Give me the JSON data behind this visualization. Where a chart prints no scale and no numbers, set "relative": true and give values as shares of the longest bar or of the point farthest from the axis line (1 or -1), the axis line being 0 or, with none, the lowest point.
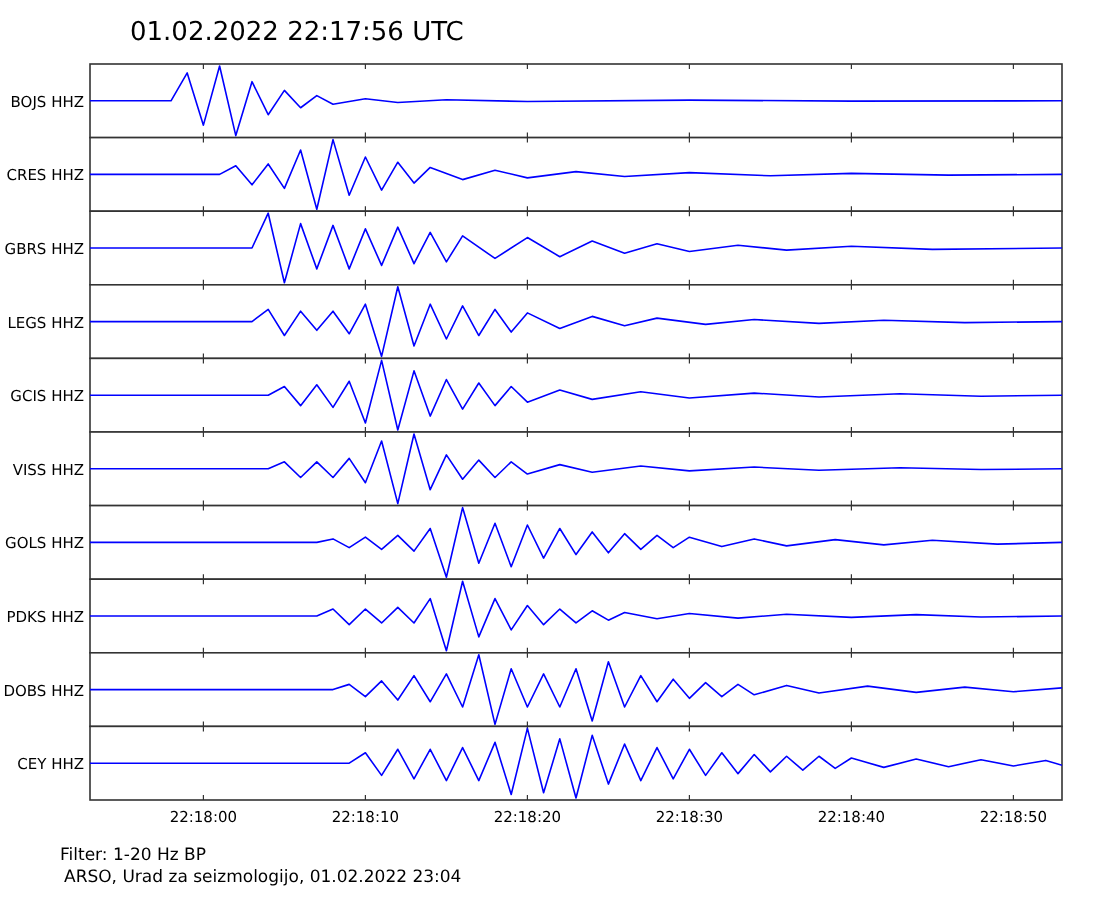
{
  "chart_data": [
    {
      "type": "line",
      "title": "01.02.2022  22:17:56 UTC",
      "ylabel": "BOJS HHZ",
      "relative": true,
      "tick_labels": false,
      "xlim": [
        "2022-02-01T22:17:53",
        "2022-02-01T22:18:53"
      ],
      "xticks": [
        {
          "value": "2022-02-01T22:18:00",
          "label": null
        },
        {
          "value": "2022-02-01T22:18:10",
          "label": null
        },
        {
          "value": "2022-02-01T22:18:20",
          "label": null
        },
        {
          "value": "2022-02-01T22:18:30",
          "label": null
        },
        {
          "value": "2022-02-01T22:18:40",
          "label": null
        },
        {
          "value": "2022-02-01T22:18:50",
          "label": null
        }
      ],
      "series": [
        {
          "color": "#0000ff",
          "x": [
            "2022-02-01T22:17:53",
            "2022-02-01T22:17:58",
            "2022-02-01T22:17:59",
            "2022-02-01T22:18:00",
            "2022-02-01T22:18:01",
            "2022-02-01T22:18:02",
            "2022-02-01T22:18:03",
            "2022-02-01T22:18:04",
            "2022-02-01T22:18:05",
            "2022-02-01T22:18:06",
            "2022-02-01T22:18:07",
            "2022-02-01T22:18:08",
            "2022-02-01T22:18:10",
            "2022-02-01T22:18:12",
            "2022-02-01T22:18:15",
            "2022-02-01T22:18:20",
            "2022-02-01T22:18:30",
            "2022-02-01T22:18:40",
            "2022-02-01T22:18:53"
          ],
          "values": [
            0.5,
            0.5,
            0.9,
            0.15,
            1,
            0,
            0.775,
            0.3,
            0.65,
            0.4,
            0.575,
            0.45,
            0.53,
            0.475,
            0.515,
            0.49,
            0.51,
            0.495,
            0.5
          ]
        }
      ]
    },
    {
      "type": "line",
      "ylabel": "CRES HHZ",
      "relative": true,
      "tick_labels": false,
      "xlim": [
        "2022-02-01T22:17:53",
        "2022-02-01T22:18:53"
      ],
      "xticks": [
        {
          "value": "2022-02-01T22:18:00",
          "label": null
        },
        {
          "value": "2022-02-01T22:18:10",
          "label": null
        },
        {
          "value": "2022-02-01T22:18:20",
          "label": null
        },
        {
          "value": "2022-02-01T22:18:30",
          "label": null
        },
        {
          "value": "2022-02-01T22:18:40",
          "label": null
        },
        {
          "value": "2022-02-01T22:18:50",
          "label": null
        }
      ],
      "series": [
        {
          "color": "#0000ff",
          "x": [
            "2022-02-01T22:17:53",
            "2022-02-01T22:18:01",
            "2022-02-01T22:18:02",
            "2022-02-01T22:18:03",
            "2022-02-01T22:18:04",
            "2022-02-01T22:18:05",
            "2022-02-01T22:18:06",
            "2022-02-01T22:18:07",
            "2022-02-01T22:18:08",
            "2022-02-01T22:18:09",
            "2022-02-01T22:18:10",
            "2022-02-01T22:18:11",
            "2022-02-01T22:18:12",
            "2022-02-01T22:18:13",
            "2022-02-01T22:18:14",
            "2022-02-01T22:18:16",
            "2022-02-01T22:18:18",
            "2022-02-01T22:18:20",
            "2022-02-01T22:18:23",
            "2022-02-01T22:18:26",
            "2022-02-01T22:18:30",
            "2022-02-01T22:18:35",
            "2022-02-01T22:18:40",
            "2022-02-01T22:18:46",
            "2022-02-01T22:18:53"
          ],
          "values": [
            0.5,
            0.5,
            0.625,
            0.35,
            0.65,
            0.3,
            0.85,
            0,
            1,
            0.2,
            0.75,
            0.275,
            0.675,
            0.375,
            0.6,
            0.425,
            0.56,
            0.45,
            0.54,
            0.47,
            0.525,
            0.48,
            0.515,
            0.49,
            0.5
          ]
        }
      ]
    },
    {
      "type": "line",
      "ylabel": "GBRS HHZ",
      "relative": true,
      "tick_labels": false,
      "xlim": [
        "2022-02-01T22:17:53",
        "2022-02-01T22:18:53"
      ],
      "xticks": [
        {
          "value": "2022-02-01T22:18:00",
          "label": null
        },
        {
          "value": "2022-02-01T22:18:10",
          "label": null
        },
        {
          "value": "2022-02-01T22:18:20",
          "label": null
        },
        {
          "value": "2022-02-01T22:18:30",
          "label": null
        },
        {
          "value": "2022-02-01T22:18:40",
          "label": null
        },
        {
          "value": "2022-02-01T22:18:50",
          "label": null
        }
      ],
      "series": [
        {
          "color": "#0000ff",
          "x": [
            "2022-02-01T22:17:53",
            "2022-02-01T22:18:03",
            "2022-02-01T22:18:04",
            "2022-02-01T22:18:05",
            "2022-02-01T22:18:06",
            "2022-02-01T22:18:07",
            "2022-02-01T22:18:08",
            "2022-02-01T22:18:09",
            "2022-02-01T22:18:10",
            "2022-02-01T22:18:11",
            "2022-02-01T22:18:12",
            "2022-02-01T22:18:13",
            "2022-02-01T22:18:14",
            "2022-02-01T22:18:15",
            "2022-02-01T22:18:16",
            "2022-02-01T22:18:18",
            "2022-02-01T22:18:20",
            "2022-02-01T22:18:22",
            "2022-02-01T22:18:24",
            "2022-02-01T22:18:26",
            "2022-02-01T22:18:28",
            "2022-02-01T22:18:30",
            "2022-02-01T22:18:33",
            "2022-02-01T22:18:36",
            "2022-02-01T22:18:40",
            "2022-02-01T22:18:45",
            "2022-02-01T22:18:53"
          ],
          "values": [
            0.5,
            0.5,
            1,
            0,
            0.85,
            0.2,
            0.825,
            0.2,
            0.775,
            0.25,
            0.8,
            0.275,
            0.725,
            0.3,
            0.675,
            0.35,
            0.65,
            0.375,
            0.6,
            0.425,
            0.56,
            0.45,
            0.54,
            0.47,
            0.525,
            0.48,
            0.5
          ]
        }
      ]
    },
    {
      "type": "line",
      "ylabel": "LEGS HHZ",
      "relative": true,
      "tick_labels": false,
      "xlim": [
        "2022-02-01T22:17:53",
        "2022-02-01T22:18:53"
      ],
      "xticks": [
        {
          "value": "2022-02-01T22:18:00",
          "label": null
        },
        {
          "value": "2022-02-01T22:18:10",
          "label": null
        },
        {
          "value": "2022-02-01T22:18:20",
          "label": null
        },
        {
          "value": "2022-02-01T22:18:30",
          "label": null
        },
        {
          "value": "2022-02-01T22:18:40",
          "label": null
        },
        {
          "value": "2022-02-01T22:18:50",
          "label": null
        }
      ],
      "series": [
        {
          "color": "#0000ff",
          "x": [
            "2022-02-01T22:17:53",
            "2022-02-01T22:18:03",
            "2022-02-01T22:18:04",
            "2022-02-01T22:18:05",
            "2022-02-01T22:18:06",
            "2022-02-01T22:18:07",
            "2022-02-01T22:18:08",
            "2022-02-01T22:18:09",
            "2022-02-01T22:18:10",
            "2022-02-01T22:18:11",
            "2022-02-01T22:18:12",
            "2022-02-01T22:18:13",
            "2022-02-01T22:18:14",
            "2022-02-01T22:18:15",
            "2022-02-01T22:18:16",
            "2022-02-01T22:18:17",
            "2022-02-01T22:18:18",
            "2022-02-01T22:18:19",
            "2022-02-01T22:18:20",
            "2022-02-01T22:18:22",
            "2022-02-01T22:18:24",
            "2022-02-01T22:18:26",
            "2022-02-01T22:18:28",
            "2022-02-01T22:18:31",
            "2022-02-01T22:18:34",
            "2022-02-01T22:18:38",
            "2022-02-01T22:18:42",
            "2022-02-01T22:18:47",
            "2022-02-01T22:18:53"
          ],
          "values": [
            0.5,
            0.5,
            0.675,
            0.3,
            0.65,
            0.375,
            0.65,
            0.325,
            0.75,
            0,
            1,
            0.15,
            0.75,
            0.25,
            0.725,
            0.3,
            0.675,
            0.35,
            0.625,
            0.4,
            0.575,
            0.44,
            0.55,
            0.46,
            0.53,
            0.475,
            0.52,
            0.485,
            0.5
          ]
        }
      ]
    },
    {
      "type": "line",
      "ylabel": "GCIS HHZ",
      "relative": true,
      "tick_labels": false,
      "xlim": [
        "2022-02-01T22:17:53",
        "2022-02-01T22:18:53"
      ],
      "xticks": [
        {
          "value": "2022-02-01T22:18:00",
          "label": null
        },
        {
          "value": "2022-02-01T22:18:10",
          "label": null
        },
        {
          "value": "2022-02-01T22:18:20",
          "label": null
        },
        {
          "value": "2022-02-01T22:18:30",
          "label": null
        },
        {
          "value": "2022-02-01T22:18:40",
          "label": null
        },
        {
          "value": "2022-02-01T22:18:50",
          "label": null
        }
      ],
      "series": [
        {
          "color": "#0000ff",
          "x": [
            "2022-02-01T22:17:53",
            "2022-02-01T22:18:04",
            "2022-02-01T22:18:05",
            "2022-02-01T22:18:06",
            "2022-02-01T22:18:07",
            "2022-02-01T22:18:08",
            "2022-02-01T22:18:09",
            "2022-02-01T22:18:10",
            "2022-02-01T22:18:11",
            "2022-02-01T22:18:12",
            "2022-02-01T22:18:13",
            "2022-02-01T22:18:14",
            "2022-02-01T22:18:15",
            "2022-02-01T22:18:16",
            "2022-02-01T22:18:17",
            "2022-02-01T22:18:18",
            "2022-02-01T22:18:19",
            "2022-02-01T22:18:20",
            "2022-02-01T22:18:22",
            "2022-02-01T22:18:24",
            "2022-02-01T22:18:27",
            "2022-02-01T22:18:30",
            "2022-02-01T22:18:34",
            "2022-02-01T22:18:38",
            "2022-02-01T22:18:43",
            "2022-02-01T22:18:48",
            "2022-02-01T22:18:53"
          ],
          "values": [
            0.5,
            0.5,
            0.625,
            0.35,
            0.65,
            0.325,
            0.7,
            0.1,
            1,
            0,
            0.85,
            0.2,
            0.725,
            0.3,
            0.675,
            0.35,
            0.625,
            0.4,
            0.575,
            0.44,
            0.55,
            0.46,
            0.53,
            0.475,
            0.52,
            0.485,
            0.5
          ]
        }
      ]
    },
    {
      "type": "line",
      "ylabel": "VISS HHZ",
      "relative": true,
      "tick_labels": false,
      "xlim": [
        "2022-02-01T22:17:53",
        "2022-02-01T22:18:53"
      ],
      "xticks": [
        {
          "value": "2022-02-01T22:18:00",
          "label": null
        },
        {
          "value": "2022-02-01T22:18:10",
          "label": null
        },
        {
          "value": "2022-02-01T22:18:20",
          "label": null
        },
        {
          "value": "2022-02-01T22:18:30",
          "label": null
        },
        {
          "value": "2022-02-01T22:18:40",
          "label": null
        },
        {
          "value": "2022-02-01T22:18:50",
          "label": null
        }
      ],
      "series": [
        {
          "color": "#0000ff",
          "x": [
            "2022-02-01T22:17:53",
            "2022-02-01T22:18:04",
            "2022-02-01T22:18:05",
            "2022-02-01T22:18:06",
            "2022-02-01T22:18:07",
            "2022-02-01T22:18:08",
            "2022-02-01T22:18:09",
            "2022-02-01T22:18:10",
            "2022-02-01T22:18:11",
            "2022-02-01T22:18:12",
            "2022-02-01T22:18:13",
            "2022-02-01T22:18:14",
            "2022-02-01T22:18:15",
            "2022-02-01T22:18:16",
            "2022-02-01T22:18:17",
            "2022-02-01T22:18:18",
            "2022-02-01T22:18:19",
            "2022-02-01T22:18:20",
            "2022-02-01T22:18:22",
            "2022-02-01T22:18:24",
            "2022-02-01T22:18:27",
            "2022-02-01T22:18:30",
            "2022-02-01T22:18:34",
            "2022-02-01T22:18:38",
            "2022-02-01T22:18:43",
            "2022-02-01T22:18:48",
            "2022-02-01T22:18:53"
          ],
          "values": [
            0.5,
            0.5,
            0.6,
            0.375,
            0.6,
            0.375,
            0.65,
            0.3,
            0.9,
            0,
            1,
            0.2,
            0.7,
            0.35,
            0.625,
            0.375,
            0.6,
            0.425,
            0.56,
            0.45,
            0.54,
            0.47,
            0.525,
            0.48,
            0.515,
            0.49,
            0.5
          ]
        }
      ]
    },
    {
      "type": "line",
      "ylabel": "GOLS HHZ",
      "relative": true,
      "tick_labels": false,
      "xlim": [
        "2022-02-01T22:17:53",
        "2022-02-01T22:18:53"
      ],
      "xticks": [
        {
          "value": "2022-02-01T22:18:00",
          "label": null
        },
        {
          "value": "2022-02-01T22:18:10",
          "label": null
        },
        {
          "value": "2022-02-01T22:18:20",
          "label": null
        },
        {
          "value": "2022-02-01T22:18:30",
          "label": null
        },
        {
          "value": "2022-02-01T22:18:40",
          "label": null
        },
        {
          "value": "2022-02-01T22:18:50",
          "label": null
        }
      ],
      "series": [
        {
          "color": "#0000ff",
          "x": [
            "2022-02-01T22:17:53",
            "2022-02-01T22:18:07",
            "2022-02-01T22:18:08",
            "2022-02-01T22:18:09",
            "2022-02-01T22:18:10",
            "2022-02-01T22:18:11",
            "2022-02-01T22:18:12",
            "2022-02-01T22:18:13",
            "2022-02-01T22:18:14",
            "2022-02-01T22:18:15",
            "2022-02-01T22:18:16",
            "2022-02-01T22:18:17",
            "2022-02-01T22:18:18",
            "2022-02-01T22:18:19",
            "2022-02-01T22:18:20",
            "2022-02-01T22:18:21",
            "2022-02-01T22:18:22",
            "2022-02-01T22:18:23",
            "2022-02-01T22:18:24",
            "2022-02-01T22:18:25",
            "2022-02-01T22:18:26",
            "2022-02-01T22:18:27",
            "2022-02-01T22:18:28",
            "2022-02-01T22:18:29",
            "2022-02-01T22:18:30",
            "2022-02-01T22:18:32",
            "2022-02-01T22:18:34",
            "2022-02-01T22:18:36",
            "2022-02-01T22:18:39",
            "2022-02-01T22:18:42",
            "2022-02-01T22:18:45",
            "2022-02-01T22:18:49",
            "2022-02-01T22:18:53"
          ],
          "values": [
            0.5,
            0.5,
            0.55,
            0.425,
            0.575,
            0.4,
            0.6,
            0.375,
            0.7,
            0,
            1,
            0.2,
            0.775,
            0.15,
            0.75,
            0.275,
            0.7,
            0.325,
            0.65,
            0.35,
            0.625,
            0.4,
            0.6,
            0.425,
            0.575,
            0.44,
            0.55,
            0.45,
            0.54,
            0.465,
            0.53,
            0.475,
            0.5
          ]
        }
      ]
    },
    {
      "type": "line",
      "ylabel": "PDKS HHZ",
      "relative": true,
      "tick_labels": false,
      "xlim": [
        "2022-02-01T22:17:53",
        "2022-02-01T22:18:53"
      ],
      "xticks": [
        {
          "value": "2022-02-01T22:18:00",
          "label": null
        },
        {
          "value": "2022-02-01T22:18:10",
          "label": null
        },
        {
          "value": "2022-02-01T22:18:20",
          "label": null
        },
        {
          "value": "2022-02-01T22:18:30",
          "label": null
        },
        {
          "value": "2022-02-01T22:18:40",
          "label": null
        },
        {
          "value": "2022-02-01T22:18:50",
          "label": null
        }
      ],
      "series": [
        {
          "color": "#0000ff",
          "x": [
            "2022-02-01T22:17:53",
            "2022-02-01T22:18:07",
            "2022-02-01T22:18:08",
            "2022-02-01T22:18:09",
            "2022-02-01T22:18:10",
            "2022-02-01T22:18:11",
            "2022-02-01T22:18:12",
            "2022-02-01T22:18:13",
            "2022-02-01T22:18:14",
            "2022-02-01T22:18:15",
            "2022-02-01T22:18:16",
            "2022-02-01T22:18:17",
            "2022-02-01T22:18:18",
            "2022-02-01T22:18:19",
            "2022-02-01T22:18:20",
            "2022-02-01T22:18:21",
            "2022-02-01T22:18:22",
            "2022-02-01T22:18:23",
            "2022-02-01T22:18:24",
            "2022-02-01T22:18:25",
            "2022-02-01T22:18:26",
            "2022-02-01T22:18:28",
            "2022-02-01T22:18:30",
            "2022-02-01T22:18:33",
            "2022-02-01T22:18:36",
            "2022-02-01T22:18:40",
            "2022-02-01T22:18:44",
            "2022-02-01T22:18:48",
            "2022-02-01T22:18:53"
          ],
          "values": [
            0.5,
            0.5,
            0.6,
            0.375,
            0.6,
            0.4,
            0.625,
            0.4,
            0.75,
            0,
            1,
            0.2,
            0.75,
            0.3,
            0.65,
            0.375,
            0.6,
            0.4,
            0.575,
            0.44,
            0.55,
            0.46,
            0.535,
            0.47,
            0.525,
            0.48,
            0.52,
            0.485,
            0.5
          ]
        }
      ]
    },
    {
      "type": "line",
      "ylabel": "DOBS HHZ",
      "relative": true,
      "tick_labels": false,
      "xlim": [
        "2022-02-01T22:17:53",
        "2022-02-01T22:18:53"
      ],
      "xticks": [
        {
          "value": "2022-02-01T22:18:00",
          "label": null
        },
        {
          "value": "2022-02-01T22:18:10",
          "label": null
        },
        {
          "value": "2022-02-01T22:18:20",
          "label": null
        },
        {
          "value": "2022-02-01T22:18:30",
          "label": null
        },
        {
          "value": "2022-02-01T22:18:40",
          "label": null
        },
        {
          "value": "2022-02-01T22:18:50",
          "label": null
        }
      ],
      "series": [
        {
          "color": "#0000ff",
          "x": [
            "2022-02-01T22:17:53",
            "2022-02-01T22:18:08",
            "2022-02-01T22:18:09",
            "2022-02-01T22:18:10",
            "2022-02-01T22:18:11",
            "2022-02-01T22:18:12",
            "2022-02-01T22:18:13",
            "2022-02-01T22:18:14",
            "2022-02-01T22:18:15",
            "2022-02-01T22:18:16",
            "2022-02-01T22:18:17",
            "2022-02-01T22:18:18",
            "2022-02-01T22:18:19",
            "2022-02-01T22:18:20",
            "2022-02-01T22:18:21",
            "2022-02-01T22:18:22",
            "2022-02-01T22:18:23",
            "2022-02-01T22:18:24",
            "2022-02-01T22:18:25",
            "2022-02-01T22:18:26",
            "2022-02-01T22:18:27",
            "2022-02-01T22:18:28",
            "2022-02-01T22:18:29",
            "2022-02-01T22:18:30",
            "2022-02-01T22:18:31",
            "2022-02-01T22:18:32",
            "2022-02-01T22:18:33",
            "2022-02-01T22:18:34",
            "2022-02-01T22:18:36",
            "2022-02-01T22:18:38",
            "2022-02-01T22:18:41",
            "2022-02-01T22:18:44",
            "2022-02-01T22:18:47",
            "2022-02-01T22:18:50",
            "2022-02-01T22:18:53"
          ],
          "values": [
            0.5,
            0.5,
            0.575,
            0.4,
            0.625,
            0.35,
            0.7,
            0.325,
            0.725,
            0.25,
            1,
            0,
            0.8,
            0.25,
            0.725,
            0.25,
            0.8,
            0.05,
            0.9,
            0.25,
            0.7,
            0.325,
            0.65,
            0.375,
            0.6,
            0.4,
            0.575,
            0.425,
            0.56,
            0.45,
            0.55,
            0.46,
            0.535,
            0.47,
            0.525
          ]
        }
      ]
    },
    {
      "type": "line",
      "ylabel": "CEY HHZ",
      "relative": true,
      "tick_labels": "x",
      "xlim": [
        "2022-02-01T22:17:53",
        "2022-02-01T22:18:53"
      ],
      "xticks": [
        {
          "value": "2022-02-01T22:18:00",
          "label": "22:18:00"
        },
        {
          "value": "2022-02-01T22:18:10",
          "label": "22:18:10"
        },
        {
          "value": "2022-02-01T22:18:20",
          "label": "22:18:20"
        },
        {
          "value": "2022-02-01T22:18:30",
          "label": "22:18:30"
        },
        {
          "value": "2022-02-01T22:18:40",
          "label": "22:18:40"
        },
        {
          "value": "2022-02-01T22:18:50",
          "label": "22:18:50"
        }
      ],
      "annotations": [
        "Filter: 1-20 Hz BP",
        "ARSO, Urad za seizmologijo, 01.02.2022  23:04"
      ],
      "series": [
        {
          "color": "#0000ff",
          "x": [
            "2022-02-01T22:17:53",
            "2022-02-01T22:18:09",
            "2022-02-01T22:18:10",
            "2022-02-01T22:18:11",
            "2022-02-01T22:18:12",
            "2022-02-01T22:18:13",
            "2022-02-01T22:18:14",
            "2022-02-01T22:18:15",
            "2022-02-01T22:18:16",
            "2022-02-01T22:18:17",
            "2022-02-01T22:18:18",
            "2022-02-01T22:18:19",
            "2022-02-01T22:18:20",
            "2022-02-01T22:18:21",
            "2022-02-01T22:18:22",
            "2022-02-01T22:18:23",
            "2022-02-01T22:18:24",
            "2022-02-01T22:18:25",
            "2022-02-01T22:18:26",
            "2022-02-01T22:18:27",
            "2022-02-01T22:18:28",
            "2022-02-01T22:18:29",
            "2022-02-01T22:18:30",
            "2022-02-01T22:18:31",
            "2022-02-01T22:18:32",
            "2022-02-01T22:18:33",
            "2022-02-01T22:18:34",
            "2022-02-01T22:18:35",
            "2022-02-01T22:18:36",
            "2022-02-01T22:18:37",
            "2022-02-01T22:18:38",
            "2022-02-01T22:18:39",
            "2022-02-01T22:18:40",
            "2022-02-01T22:18:42",
            "2022-02-01T22:18:44",
            "2022-02-01T22:18:46",
            "2022-02-01T22:18:48",
            "2022-02-01T22:18:50",
            "2022-02-01T22:18:52",
            "2022-02-01T22:18:53"
          ],
          "values": [
            0.5,
            0.5,
            0.65,
            0.325,
            0.7,
            0.275,
            0.7,
            0.25,
            0.725,
            0.25,
            0.8,
            0.05,
            1,
            0.075,
            0.85,
            0,
            0.9,
            0.2,
            0.775,
            0.25,
            0.725,
            0.275,
            0.7,
            0.325,
            0.65,
            0.35,
            0.625,
            0.375,
            0.6,
            0.4,
            0.6,
            0.425,
            0.575,
            0.44,
            0.56,
            0.45,
            0.55,
            0.46,
            0.54,
            0.47
          ]
        }
      ]
    }
  ]
}
